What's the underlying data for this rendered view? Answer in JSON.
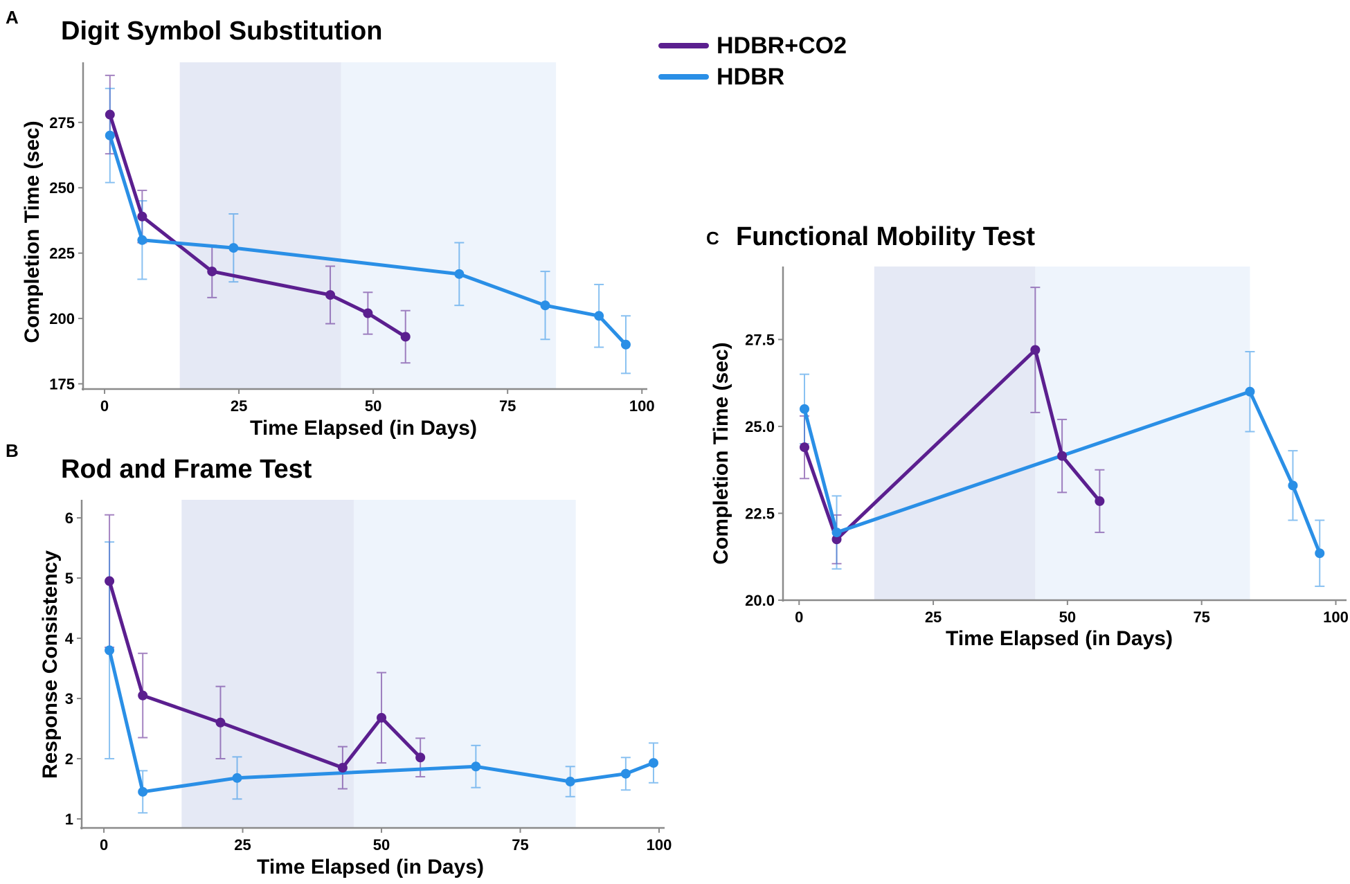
{
  "legend": {
    "entries": [
      {
        "label": "HDBR+CO2",
        "color": "#5b1f8f"
      },
      {
        "label": "HDBR",
        "color": "#2a8fe6"
      }
    ]
  },
  "chart_data": [
    {
      "id": "A",
      "letter": "A",
      "type": "line",
      "title": "Digit Symbol Substitution",
      "xlabel": "Time Elapsed (in Days)",
      "ylabel": "Completion Time (sec)",
      "xlim": [
        -4,
        101
      ],
      "ylim": [
        173,
        298
      ],
      "xticks": [
        0,
        25,
        50,
        75,
        100
      ],
      "xtick_labels": [
        "0",
        "25",
        "50",
        "75",
        "100"
      ],
      "yticks": [
        175,
        200,
        225,
        250,
        275
      ],
      "ytick_labels": [
        "175",
        "200",
        "225",
        "250",
        "275"
      ],
      "shaded": [
        {
          "from": 14,
          "to": 44,
          "color": "#e5e9f5"
        },
        {
          "from": 44,
          "to": 84,
          "color": "#eef4fc"
        }
      ],
      "series": [
        {
          "name": "HDBR+CO2",
          "color": "#5b1f8f",
          "x": [
            1,
            7,
            20,
            42,
            49,
            56
          ],
          "y": [
            278,
            239,
            218,
            209,
            202,
            193
          ],
          "err": [
            15,
            10,
            10,
            11,
            8,
            10
          ]
        },
        {
          "name": "HDBR",
          "color": "#2a8fe6",
          "x": [
            1,
            7,
            24,
            66,
            82,
            92,
            97
          ],
          "y": [
            270,
            230,
            227,
            217,
            205,
            201,
            190
          ],
          "err": [
            18,
            15,
            13,
            12,
            13,
            12,
            11
          ]
        }
      ]
    },
    {
      "id": "B",
      "letter": "B",
      "type": "line",
      "title": "Rod and Frame Test",
      "xlabel": "Time Elapsed (in Days)",
      "ylabel": "Response Consistency",
      "xlim": [
        -4,
        101
      ],
      "ylim": [
        0.85,
        6.3
      ],
      "xticks": [
        0,
        25,
        50,
        75,
        100
      ],
      "xtick_labels": [
        "0",
        "25",
        "50",
        "75",
        "100"
      ],
      "yticks": [
        1,
        2,
        3,
        4,
        5,
        6
      ],
      "ytick_labels": [
        "1",
        "2",
        "3",
        "4",
        "5",
        "6"
      ],
      "shaded": [
        {
          "from": 14,
          "to": 45,
          "color": "#e5e9f5"
        },
        {
          "from": 45,
          "to": 85,
          "color": "#eef4fc"
        }
      ],
      "series": [
        {
          "name": "HDBR+CO2",
          "color": "#5b1f8f",
          "x": [
            1,
            7,
            21,
            43,
            50,
            57
          ],
          "y": [
            4.95,
            3.05,
            2.6,
            1.85,
            2.68,
            2.02
          ],
          "err": [
            1.1,
            0.7,
            0.6,
            0.35,
            0.75,
            0.32
          ]
        },
        {
          "name": "HDBR",
          "color": "#2a8fe6",
          "x": [
            1,
            7,
            24,
            67,
            84,
            94,
            99
          ],
          "y": [
            3.8,
            1.45,
            1.68,
            1.87,
            1.62,
            1.75,
            1.93
          ],
          "err": [
            1.8,
            0.35,
            0.35,
            0.35,
            0.25,
            0.27,
            0.33
          ]
        }
      ]
    },
    {
      "id": "C",
      "letter": "C",
      "type": "line",
      "title": "Functional Mobility Test",
      "xlabel": "Time Elapsed (in Days)",
      "ylabel": "Completion Time (sec)",
      "xlim": [
        -3,
        102
      ],
      "ylim": [
        20,
        29.6
      ],
      "xticks": [
        0,
        25,
        50,
        75,
        100
      ],
      "xtick_labels": [
        "0",
        "25",
        "50",
        "75",
        "100"
      ],
      "yticks": [
        20.0,
        22.5,
        25.0,
        27.5
      ],
      "ytick_labels": [
        "20.0",
        "22.5",
        "25.0",
        "27.5"
      ],
      "shaded": [
        {
          "from": 14,
          "to": 44,
          "color": "#e5e9f5"
        },
        {
          "from": 44,
          "to": 84,
          "color": "#eef4fc"
        }
      ],
      "series": [
        {
          "name": "HDBR+CO2",
          "color": "#5b1f8f",
          "x": [
            1,
            7,
            44,
            49,
            56
          ],
          "y": [
            24.4,
            21.75,
            27.2,
            24.15,
            22.85
          ],
          "err": [
            0.9,
            0.7,
            1.8,
            1.05,
            0.9
          ]
        },
        {
          "name": "HDBR",
          "color": "#2a8fe6",
          "x": [
            1,
            7,
            84,
            92,
            97
          ],
          "y": [
            25.5,
            21.95,
            26.0,
            23.3,
            21.35
          ],
          "err": [
            1.0,
            1.05,
            1.15,
            1.0,
            0.95
          ]
        }
      ]
    }
  ]
}
